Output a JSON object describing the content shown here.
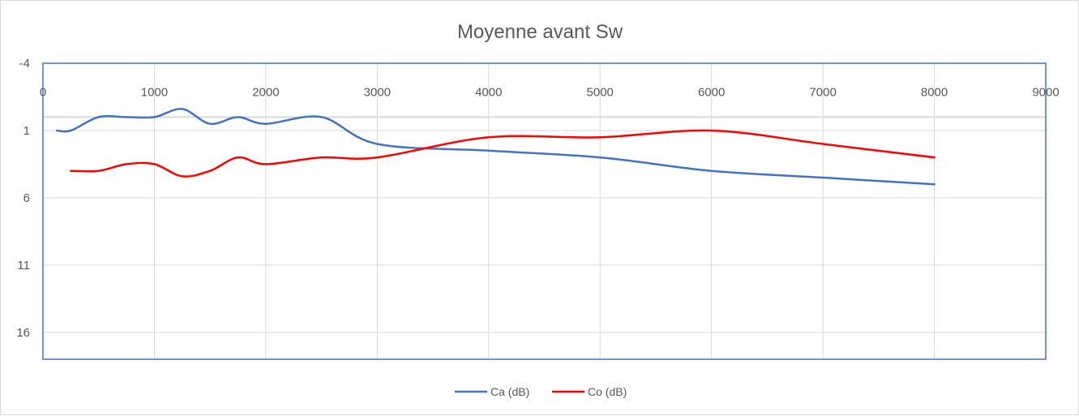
{
  "chart_data": {
    "type": "line",
    "title": "Moyenne avant Sw",
    "xlabel": "",
    "ylabel": "",
    "xlim": [
      0,
      9000
    ],
    "ylim": [
      -4,
      18
    ],
    "y_inverted": true,
    "x_ticks": [
      "0",
      "1000",
      "2000",
      "3000",
      "4000",
      "5000",
      "6000",
      "7000",
      "8000",
      "9000"
    ],
    "y_ticks": [
      "-4",
      "1",
      "6",
      "11",
      "16"
    ],
    "grid": true,
    "legend_position": "bottom",
    "series": [
      {
        "name": "Ca (dB)",
        "color": "#4472c4",
        "x": [
          125,
          250,
          500,
          750,
          1000,
          1250,
          1500,
          1750,
          2000,
          2500,
          3000,
          4000,
          5000,
          6000,
          7000,
          8000
        ],
        "y": [
          1.0,
          1.0,
          0.0,
          0.0,
          0.0,
          -0.6,
          0.5,
          0.0,
          0.5,
          0.0,
          2.0,
          2.5,
          3.0,
          4.0,
          4.5,
          5.0
        ]
      },
      {
        "name": "Co (dB)",
        "color": "#ff0000",
        "x": [
          250,
          500,
          750,
          1000,
          1250,
          1500,
          1750,
          2000,
          2500,
          3000,
          4000,
          5000,
          6000,
          7000,
          8000
        ],
        "y": [
          4.0,
          4.0,
          3.5,
          3.5,
          4.4,
          4.0,
          3.0,
          3.5,
          3.0,
          3.0,
          1.5,
          1.5,
          1.0,
          2.0,
          3.0
        ]
      }
    ]
  }
}
